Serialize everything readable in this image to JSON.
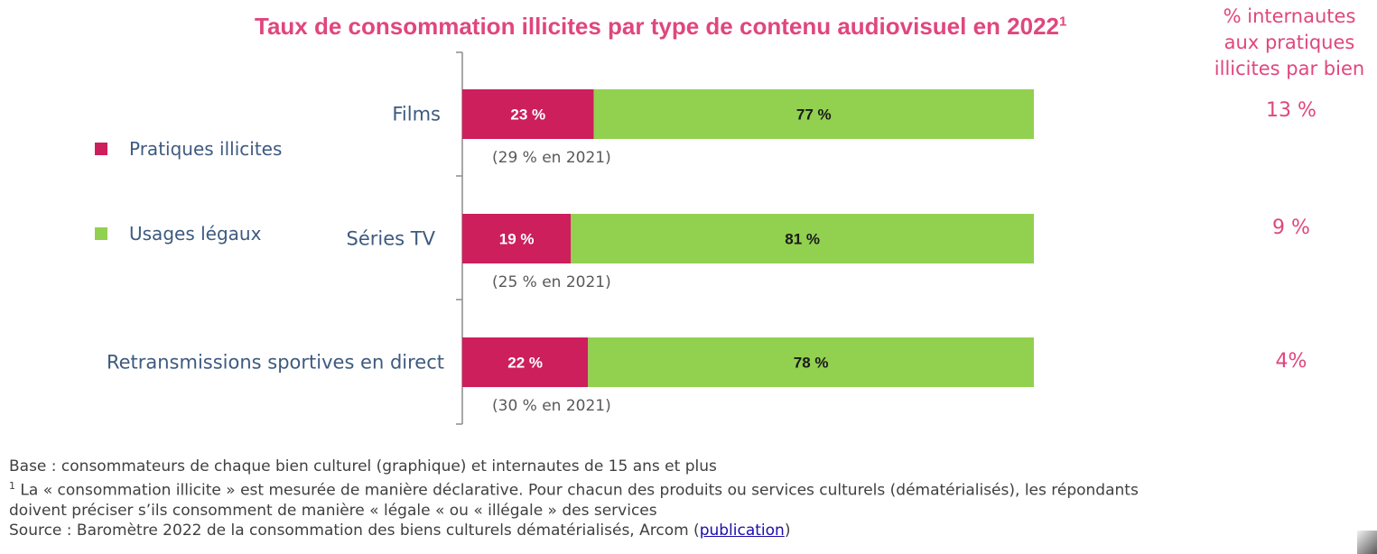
{
  "chart_data": {
    "type": "bar",
    "stacked": true,
    "orientation": "horizontal",
    "title": "Taux de consommation illicites par type de contenu audiovisuel en 2022",
    "title_footnote_marker": "1",
    "categories": [
      "Films",
      "Séries TV",
      "Retransmissions sportives en direct"
    ],
    "series": [
      {
        "name": "Pratiques illicites",
        "color": "#cc1f5b",
        "values": [
          23,
          19,
          22
        ],
        "labels": [
          "23 %",
          "19 %",
          "22 %"
        ]
      },
      {
        "name": "Usages légaux",
        "color": "#92d050",
        "values": [
          77,
          81,
          78
        ],
        "labels": [
          "77 %",
          "81 %",
          "78 %"
        ]
      }
    ],
    "previous_year_notes": [
      "(29 % en 2021)",
      "(25 % en 2021)",
      "(30 % en 2021)"
    ],
    "xlim": [
      0,
      100
    ],
    "grid": false,
    "legend_placement": "left",
    "side_column": {
      "header": [
        "% internautes",
        "aux pratiques",
        "illicites par bien"
      ],
      "values": [
        "13 %",
        "9 %",
        "4%"
      ]
    }
  },
  "footnotes": {
    "base": "Base : consommateurs de chaque bien culturel (graphique) et internautes de 15 ans et plus",
    "note_marker": "1",
    "note_line1": " La « consommation illicite  » est mesurée de manière déclarative. Pour chacun des produits ou services culturels (dématérialisés), les répondants",
    "note_line2": "doivent préciser s’ils consomment de manière « légale « ou « illégale » des services",
    "source_prefix": "Source : Baromètre 2022 de la consommation des biens culturels dématérialisés, Arcom (",
    "source_link": "publication",
    "source_suffix": ")"
  },
  "colors": {
    "accent": "#e0467d",
    "axis_label": "#3d5a80",
    "note": "#595959"
  }
}
